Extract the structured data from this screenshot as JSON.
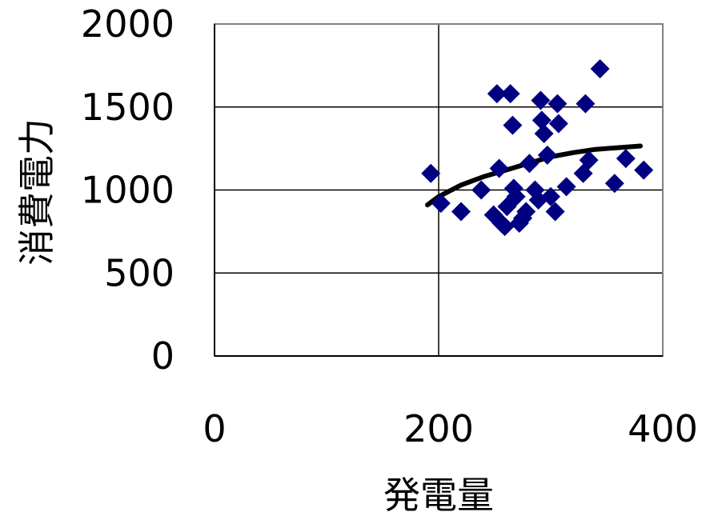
{
  "chart_data": {
    "type": "scatter",
    "xlabel": "発電量",
    "ylabel": "消費電力",
    "xlim": [
      0,
      400
    ],
    "ylim": [
      0,
      2000
    ],
    "x_ticks": [
      "0",
      "200",
      "400"
    ],
    "y_ticks": [
      "0",
      "500",
      "1000",
      "1500",
      "2000"
    ],
    "grid": true,
    "colors": {
      "points": "#000080",
      "trend": "#000000",
      "grid": "#000000",
      "frame": "#808080"
    },
    "series": [
      {
        "type": "scatter",
        "points": [
          {
            "x": 193,
            "y": 1100
          },
          {
            "x": 202,
            "y": 920
          },
          {
            "x": 220,
            "y": 870
          },
          {
            "x": 238,
            "y": 1000
          },
          {
            "x": 249,
            "y": 850
          },
          {
            "x": 252,
            "y": 1580
          },
          {
            "x": 254,
            "y": 1130
          },
          {
            "x": 256,
            "y": 800
          },
          {
            "x": 259,
            "y": 780
          },
          {
            "x": 261,
            "y": 900
          },
          {
            "x": 264,
            "y": 1580
          },
          {
            "x": 266,
            "y": 1390
          },
          {
            "x": 267,
            "y": 1010
          },
          {
            "x": 269,
            "y": 960
          },
          {
            "x": 272,
            "y": 800
          },
          {
            "x": 275,
            "y": 830
          },
          {
            "x": 278,
            "y": 870
          },
          {
            "x": 281,
            "y": 1160
          },
          {
            "x": 286,
            "y": 1000
          },
          {
            "x": 289,
            "y": 940
          },
          {
            "x": 291,
            "y": 1540
          },
          {
            "x": 292,
            "y": 1420
          },
          {
            "x": 294,
            "y": 1340
          },
          {
            "x": 297,
            "y": 1210
          },
          {
            "x": 300,
            "y": 960
          },
          {
            "x": 304,
            "y": 870
          },
          {
            "x": 306,
            "y": 1520
          },
          {
            "x": 307,
            "y": 1400
          },
          {
            "x": 314,
            "y": 1020
          },
          {
            "x": 329,
            "y": 1100
          },
          {
            "x": 331,
            "y": 1520
          },
          {
            "x": 334,
            "y": 1180
          },
          {
            "x": 344,
            "y": 1730
          },
          {
            "x": 357,
            "y": 1040
          },
          {
            "x": 367,
            "y": 1190
          },
          {
            "x": 383,
            "y": 1120
          }
        ]
      },
      {
        "type": "trendline",
        "x": [
          190,
          200,
          220,
          240,
          260,
          280,
          300,
          320,
          340,
          360,
          380
        ],
        "y": [
          910,
          960,
          1030,
          1080,
          1120,
          1160,
          1200,
          1225,
          1245,
          1255,
          1265
        ]
      }
    ]
  }
}
